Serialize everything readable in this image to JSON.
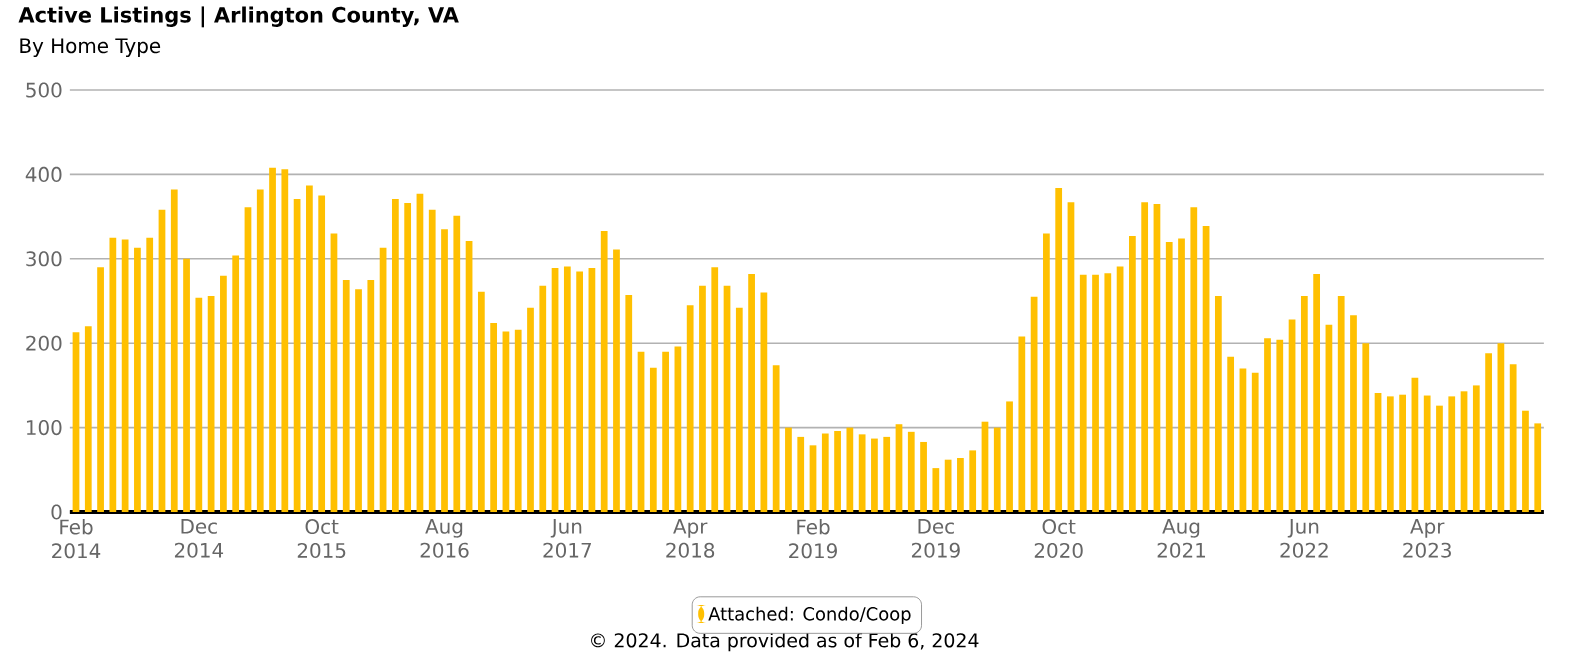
{
  "chart_data": {
    "type": "bar",
    "title": "Active Listings | Arlington County, VA",
    "subtitle": "By Home Type",
    "annotations": [
      "© 2024. Data provided as of Feb 6, 2024"
    ],
    "categories": [
      "Feb 2014",
      null,
      null,
      null,
      null,
      null,
      null,
      null,
      null,
      null,
      "Dec 2014",
      null,
      null,
      null,
      null,
      null,
      null,
      null,
      null,
      null,
      "Oct 2015",
      null,
      null,
      null,
      null,
      null,
      null,
      null,
      null,
      null,
      "Aug 2016",
      null,
      null,
      null,
      null,
      null,
      null,
      null,
      null,
      null,
      "Jun 2017",
      null,
      null,
      null,
      null,
      null,
      null,
      null,
      null,
      null,
      "Apr 2018",
      null,
      null,
      null,
      null,
      null,
      null,
      null,
      null,
      null,
      "Feb 2019",
      null,
      null,
      null,
      null,
      null,
      null,
      null,
      null,
      null,
      "Dec 2019",
      null,
      null,
      null,
      null,
      null,
      null,
      null,
      null,
      null,
      "Oct 2020",
      null,
      null,
      null,
      null,
      null,
      null,
      null,
      null,
      null,
      "Aug 2021",
      null,
      null,
      null,
      null,
      null,
      null,
      null,
      null,
      null,
      "Jun 2022",
      null,
      null,
      null,
      null,
      null,
      null,
      null,
      null,
      null,
      "Apr 2023",
      null,
      null,
      null,
      null,
      null,
      null,
      null,
      null,
      null
    ],
    "series": [
      {
        "name": "Attached: Condo/Coop",
        "color": "#ffc000",
        "values": [
          213,
          220,
          290,
          325,
          323,
          313,
          325,
          358,
          382,
          300,
          254,
          256,
          280,
          304,
          361,
          382,
          408,
          406,
          371,
          387,
          375,
          330,
          275,
          264,
          275,
          313,
          371,
          366,
          377,
          358,
          335,
          351,
          321,
          261,
          224,
          214,
          216,
          242,
          268,
          289,
          291,
          285,
          289,
          333,
          311,
          257,
          190,
          171,
          190,
          196,
          245,
          268,
          290,
          268,
          242,
          282,
          260,
          174,
          100,
          89,
          79,
          93,
          96,
          100,
          92,
          87,
          89,
          104,
          95,
          83,
          52,
          62,
          64,
          73,
          107,
          100,
          131,
          208,
          255,
          330,
          384,
          367,
          281,
          281,
          283,
          291,
          327,
          367,
          365,
          320,
          324,
          361,
          339,
          256,
          184,
          170,
          165,
          206,
          204,
          228,
          256,
          282,
          222,
          256,
          233,
          200,
          141,
          137,
          139,
          159,
          138,
          126,
          137,
          143,
          150,
          188,
          200,
          175,
          120,
          105
        ]
      }
    ],
    "ylim": [
      0,
      500
    ],
    "yticks": [
      0,
      100,
      200,
      300,
      400,
      500
    ],
    "grid": "y",
    "legend": "bottom"
  }
}
